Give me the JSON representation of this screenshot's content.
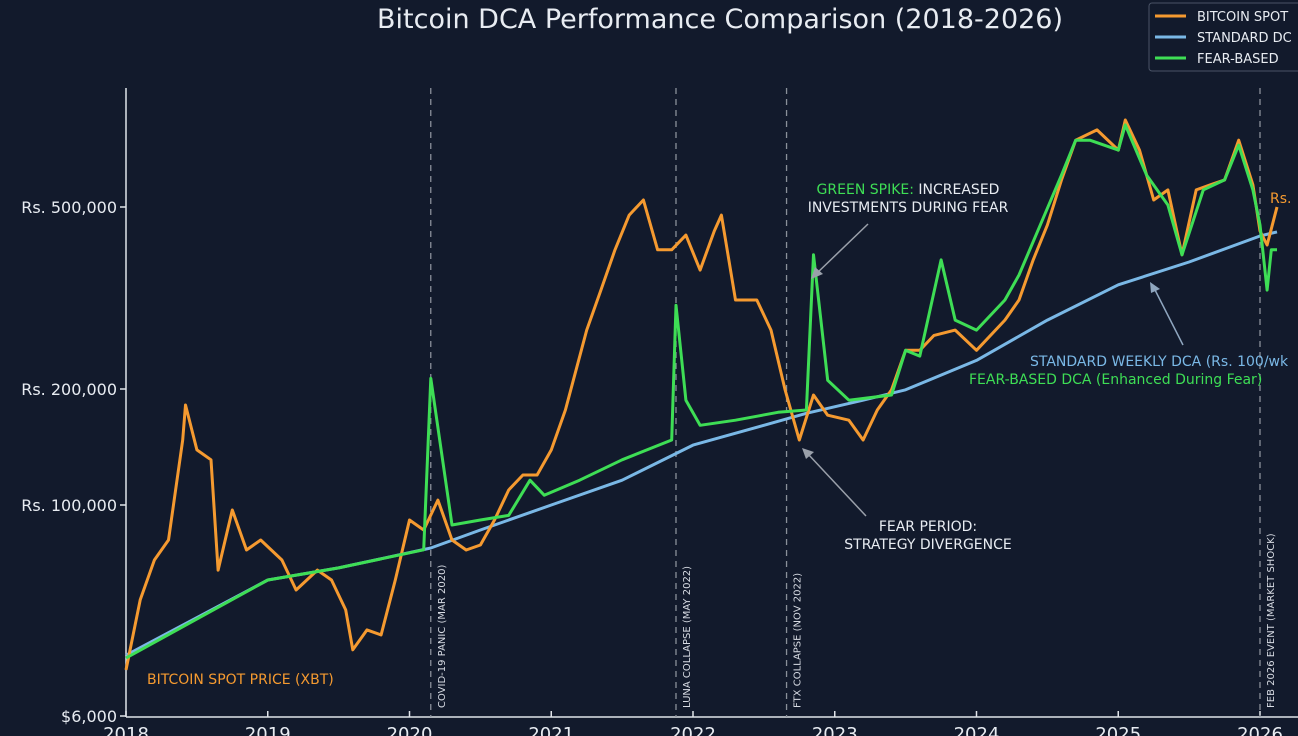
{
  "chart_data": {
    "type": "line",
    "title": "Bitcoin DCA Performance Comparison (2018-2026)",
    "xlabel": "",
    "ylabel": "",
    "xlim": [
      2018,
      2026.3
    ],
    "y_scale": "log",
    "y_ticks": [
      {
        "value": 6000,
        "label": "$6,000"
      },
      {
        "value": 100000,
        "label": "Rs. 100,000"
      },
      {
        "value": 200000,
        "label": "Rs. 200,000"
      },
      {
        "value": 500000,
        "label": "Rs. 500,000"
      }
    ],
    "x_ticks": [
      "2018",
      "2019",
      "2020",
      "2021",
      "2022",
      "2023",
      "2024",
      "2025",
      "2026"
    ],
    "grid": false,
    "legend": {
      "placement": "top-right",
      "entries": [
        {
          "label": "BITCOIN SPOT",
          "color": "#f59a30"
        },
        {
          "label": "STANDARD DC",
          "color": "#7ab8e6"
        },
        {
          "label": "FEAR-BASED",
          "color": "#3ede55"
        }
      ]
    },
    "series": [
      {
        "key": "spot",
        "color": "#f59a30",
        "x": [
          2018.0,
          2018.1,
          2018.2,
          2018.3,
          2018.4,
          2018.42,
          2018.5,
          2018.6,
          2018.65,
          2018.75,
          2018.85,
          2018.95,
          2019.1,
          2019.2,
          2019.35,
          2019.45,
          2019.55,
          2019.6,
          2019.7,
          2019.8,
          2019.9,
          2020.0,
          2020.1,
          2020.2,
          2020.3,
          2020.4,
          2020.5,
          2020.6,
          2020.7,
          2020.8,
          2020.9,
          2021.0,
          2021.1,
          2021.25,
          2021.35,
          2021.45,
          2021.55,
          2021.65,
          2021.75,
          2021.85,
          2021.95,
          2022.05,
          2022.15,
          2022.2,
          2022.3,
          2022.45,
          2022.55,
          2022.65,
          2022.75,
          2022.85,
          2022.95,
          2023.1,
          2023.2,
          2023.3,
          2023.4,
          2023.5,
          2023.6,
          2023.7,
          2023.85,
          2024.0,
          2024.2,
          2024.3,
          2024.4,
          2024.5,
          2024.6,
          2024.7,
          2024.85,
          2025.0,
          2025.05,
          2025.15,
          2025.25,
          2025.35,
          2025.45,
          2025.55,
          2025.65,
          2025.75,
          2025.85,
          2025.95,
          2026.0,
          2026.05,
          2026.12
        ],
        "y": [
          11100,
          28200,
          48000,
          62700,
          147500,
          181800,
          139000,
          131000,
          42000,
          93500,
          54900,
          62700,
          48000,
          32200,
          42000,
          36800,
          24700,
          14500,
          18900,
          17700,
          36800,
          81900,
          71700,
          103000,
          62700,
          54900,
          58700,
          81900,
          109400,
          119600,
          119600,
          139000,
          176400,
          269000,
          329000,
          403000,
          480000,
          518000,
          403000,
          403000,
          434000,
          364000,
          443000,
          480000,
          313000,
          313000,
          269000,
          198900,
          147500,
          193000,
          171000,
          166000,
          147500,
          176400,
          198900,
          243000,
          243000,
          262000,
          269000,
          243000,
          283000,
          313000,
          383000,
          457000,
          573000,
          700000,
          737000,
          666000,
          775000,
          666000,
          518000,
          545000,
          393000,
          545000,
          559000,
          573000,
          700000,
          559000,
          443000,
          413000,
          500000
        ]
      },
      {
        "key": "standard",
        "color": "#7ab8e6",
        "x": [
          2018.0,
          2019.0,
          2019.5,
          2020.15,
          2020.5,
          2021.0,
          2021.5,
          2022.0,
          2022.5,
          2022.8,
          2023.2,
          2023.5,
          2024.0,
          2024.5,
          2025.0,
          2025.5,
          2026.0,
          2026.12
        ],
        "y": [
          13500,
          36800,
          43200,
          56400,
          71700,
          100000,
          116000,
          143000,
          161000,
          173000,
          187000,
          199000,
          231000,
          283000,
          338000,
          379000,
          432000,
          441000
        ]
      },
      {
        "key": "fear",
        "color": "#3ede55",
        "x": [
          2018.0,
          2019.0,
          2019.5,
          2020.1,
          2020.15,
          2020.3,
          2020.5,
          2020.7,
          2020.85,
          2020.95,
          2021.2,
          2021.5,
          2021.85,
          2021.88,
          2021.95,
          2022.05,
          2022.3,
          2022.6,
          2022.8,
          2022.85,
          2022.95,
          2023.1,
          2023.4,
          2023.5,
          2023.6,
          2023.75,
          2023.85,
          2024.0,
          2024.2,
          2024.3,
          2024.45,
          2024.6,
          2024.7,
          2024.8,
          2025.0,
          2025.05,
          2025.2,
          2025.35,
          2025.45,
          2025.6,
          2025.75,
          2025.85,
          2025.95,
          2026.0,
          2026.05,
          2026.08,
          2026.12
        ],
        "y": [
          13000,
          36800,
          43200,
          55000,
          211000,
          76600,
          81900,
          87000,
          116000,
          106000,
          116000,
          131000,
          147500,
          305000,
          187000,
          161000,
          166000,
          174000,
          176400,
          393000,
          209000,
          187000,
          193000,
          243000,
          236000,
          383000,
          283000,
          269000,
          313000,
          355000,
          457000,
          587000,
          700000,
          700000,
          666000,
          756000,
          587000,
          505000,
          393000,
          545000,
          573000,
          683000,
          545000,
          457000,
          329000,
          403000,
          403000
        ]
      }
    ],
    "events": [
      {
        "x": 2020.15,
        "label": "COVID-19 PANIC (MAR 2020)"
      },
      {
        "x": 2021.88,
        "label": "LUNA COLLAPSE (MAY 2022)"
      },
      {
        "x": 2022.66,
        "label": "FTX COLLAPSE (NOV 2022)"
      },
      {
        "x": 2026.0,
        "label": "FEB 2026 EVENT (MARKET SHOCK)"
      }
    ],
    "annotations": {
      "spot_label": "BITCOIN SPOT PRICE (XBT)",
      "spike_green": "GREEN SPIKE:",
      "spike_rest": " INCREASED",
      "spike_line2": "INVESTMENTS DURING FEAR",
      "fear_line1": "FEAR PERIOD:",
      "fear_line2": "STRATEGY DIVERGENCE",
      "standard_label": "STANDARD WEEKLY DCA (Rs. 100/wk",
      "fear_label": "FEAR-BASED DCA (Enhanced During Fear)",
      "end_label": "Rs."
    }
  }
}
